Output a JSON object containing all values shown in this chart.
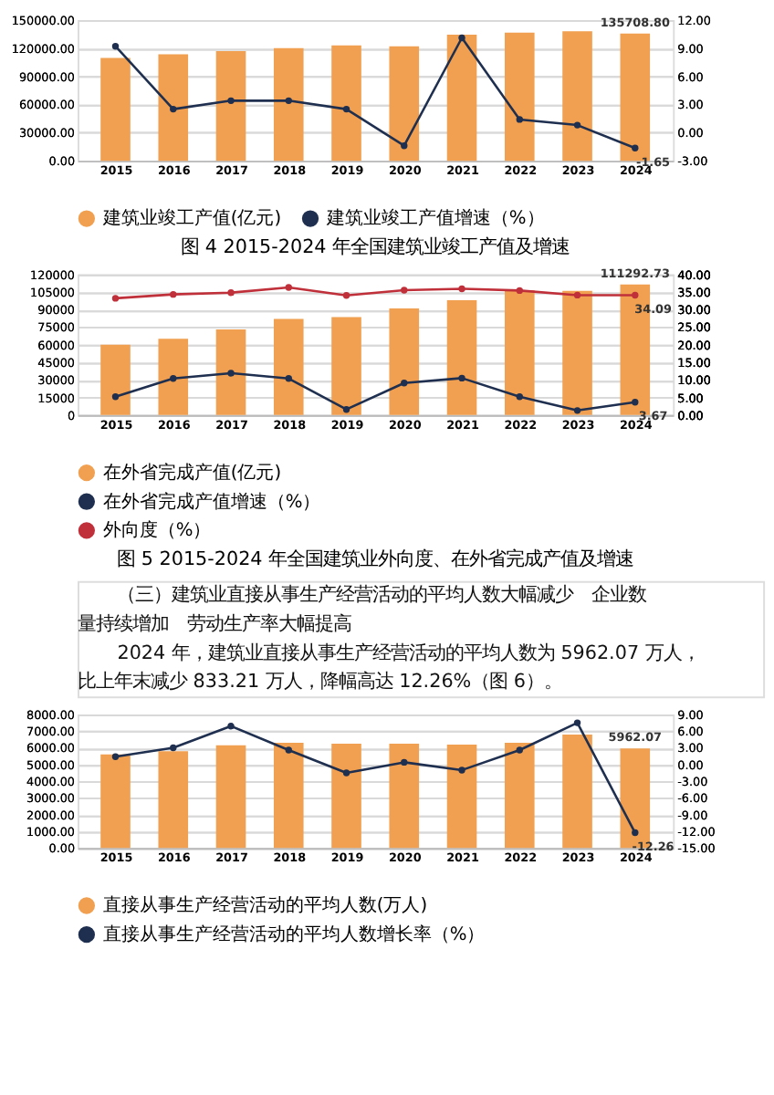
{
  "chart_data": [
    {
      "type": "bar",
      "title": "图 4 2015-2024 年全国建筑业竣工产值及增速",
      "categories": [
        "2015",
        "2016",
        "2017",
        "2018",
        "2019",
        "2020",
        "2021",
        "2022",
        "2023",
        "2024"
      ],
      "series": [
        {
          "name": "建筑业竣工产值(亿元)",
          "color": "#f0a050",
          "values": [
            109500,
            113500,
            117000,
            120000,
            123000,
            122000,
            134500,
            136500,
            138000,
            135708.8
          ],
          "value_labels": [
            null,
            null,
            null,
            null,
            null,
            null,
            null,
            null,
            null,
            "135708.80"
          ]
        },
        {
          "name": "建筑业竣工产值增速（%）",
          "type": "line",
          "axis": "y2",
          "color": "#1f2f4f",
          "values": [
            9.2,
            2.5,
            3.4,
            3.4,
            2.5,
            -1.4,
            10.1,
            1.4,
            0.8,
            -1.65
          ],
          "value_labels": [
            null,
            null,
            null,
            null,
            null,
            null,
            null,
            null,
            null,
            "-1.65"
          ]
        }
      ],
      "ylim": [
        0,
        150000
      ],
      "yticks": [
        {
          "value": 0,
          "label": "0.00"
        },
        {
          "value": 30000,
          "label": "30000.00"
        },
        {
          "value": 60000,
          "label": "60000.00"
        },
        {
          "value": 90000,
          "label": "90000.00"
        },
        {
          "value": 120000,
          "label": "120000.00"
        },
        {
          "value": 150000,
          "label": "150000.00"
        }
      ],
      "y2lim": [
        -3,
        12
      ],
      "y2ticks": [
        {
          "value": -3,
          "label": "-3.00"
        },
        {
          "value": 0,
          "label": "0.00"
        },
        {
          "value": 3,
          "label": "3.00"
        },
        {
          "value": 6,
          "label": "6.00"
        },
        {
          "value": 9,
          "label": "9.00"
        },
        {
          "value": 12,
          "label": "12.00"
        }
      ],
      "grid": "y",
      "legend": "bottom",
      "marker": "circle",
      "line_style": "solid"
    },
    {
      "type": "bar",
      "title": "图 5 2015-2024 年全国建筑业外向度、在外省完成产值及增速",
      "categories": [
        "2015",
        "2016",
        "2017",
        "2018",
        "2019",
        "2020",
        "2021",
        "2022",
        "2023",
        "2024"
      ],
      "series": [
        {
          "name": "在外省完成产值(亿元)",
          "color": "#f0a050",
          "values": [
            60000,
            65000,
            73000,
            82000,
            83500,
            91000,
            98000,
            106500,
            106000,
            111292.73
          ],
          "value_labels": [
            null,
            null,
            null,
            null,
            null,
            null,
            null,
            null,
            null,
            "111292.73"
          ]
        },
        {
          "name": "在外省完成产值增速（%）",
          "type": "line",
          "axis": "y2",
          "color": "#1f2f4f",
          "values": [
            5.2,
            10.4,
            11.9,
            10.4,
            1.6,
            9.1,
            10.5,
            5.2,
            1.3,
            3.67
          ],
          "value_labels": [
            null,
            null,
            null,
            null,
            null,
            null,
            null,
            null,
            null,
            "3.67"
          ]
        },
        {
          "name": "外向度（%）",
          "type": "line",
          "axis": "y2",
          "color": "#c0303a",
          "values": [
            33.2,
            34.3,
            34.8,
            36.3,
            34.0,
            35.5,
            35.9,
            35.4,
            34.1,
            34.09
          ],
          "value_labels": [
            null,
            null,
            null,
            null,
            null,
            null,
            null,
            null,
            null,
            "34.09"
          ]
        }
      ],
      "ylim": [
        0,
        120000
      ],
      "yticks": [
        {
          "value": 0,
          "label": "0"
        },
        {
          "value": 15000,
          "label": "15000"
        },
        {
          "value": 30000,
          "label": "30000"
        },
        {
          "value": 45000,
          "label": "45000"
        },
        {
          "value": 60000,
          "label": "60000"
        },
        {
          "value": 75000,
          "label": "75000"
        },
        {
          "value": 90000,
          "label": "90000"
        },
        {
          "value": 105000,
          "label": "105000"
        },
        {
          "value": 120000,
          "label": "120000"
        }
      ],
      "y2lim": [
        0,
        40
      ],
      "y2ticks": [
        {
          "value": 0,
          "label": "0.00"
        },
        {
          "value": 5,
          "label": "5.00"
        },
        {
          "value": 10,
          "label": "10.00"
        },
        {
          "value": 15,
          "label": "15.00"
        },
        {
          "value": 20,
          "label": "20.00"
        },
        {
          "value": 25,
          "label": "25.00"
        },
        {
          "value": 30,
          "label": "30.00"
        },
        {
          "value": 35,
          "label": "35.00"
        },
        {
          "value": 40,
          "label": "40.00"
        }
      ],
      "grid": "y",
      "legend": "bottom",
      "marker": "circle",
      "line_style": "solid"
    },
    {
      "type": "bar",
      "annotations": [
        "（三）建筑业直接从事生产经营活动的平均人数大幅减少　企业数",
        "量持续增加　劳动生产率大幅提高",
        "2024 年，建筑业直接从事生产经营活动的平均人数为 5962.07 万人，",
        "比上年末减少 833.21 万人，降幅高达 12.26%（图 6）。"
      ],
      "categories": [
        "2015",
        "2016",
        "2017",
        "2018",
        "2019",
        "2020",
        "2021",
        "2022",
        "2023",
        "2024"
      ],
      "series": [
        {
          "name": "直接从事生产经营活动的平均人数(万人)",
          "color": "#f0a050",
          "values": [
            5600,
            5800,
            6150,
            6300,
            6250,
            6250,
            6200,
            6300,
            6795.28,
            5962.07
          ],
          "value_labels": [
            null,
            null,
            null,
            null,
            null,
            null,
            null,
            null,
            null,
            "5962.07"
          ]
        },
        {
          "name": "直接从事生产经营活动的平均人数增长率（%）",
          "type": "line",
          "axis": "y2",
          "color": "#1f2f4f",
          "values": [
            1.4,
            3.0,
            6.9,
            2.6,
            -1.5,
            0.4,
            -1.0,
            2.6,
            7.5,
            -12.26
          ],
          "value_labels": [
            null,
            null,
            null,
            null,
            null,
            null,
            null,
            null,
            null,
            "-12.26"
          ]
        }
      ],
      "ylim": [
        0,
        8000
      ],
      "yticks": [
        {
          "value": 0,
          "label": "0.00"
        },
        {
          "value": 1000,
          "label": "1000.00"
        },
        {
          "value": 2000,
          "label": "2000.00"
        },
        {
          "value": 3000,
          "label": "3000.00"
        },
        {
          "value": 4000,
          "label": "4000.00"
        },
        {
          "value": 5000,
          "label": "5000.00"
        },
        {
          "value": 6000,
          "label": "6000.00"
        },
        {
          "value": 7000,
          "label": "7000.00"
        },
        {
          "value": 8000,
          "label": "8000.00"
        }
      ],
      "y2lim": [
        -15,
        9
      ],
      "y2ticks": [
        {
          "value": -15,
          "label": "-15.00"
        },
        {
          "value": -12,
          "label": "-12.00"
        },
        {
          "value": -9,
          "label": "-9.00"
        },
        {
          "value": -6,
          "label": "-6.00"
        },
        {
          "value": -3,
          "label": "-3.00"
        },
        {
          "value": 0,
          "label": "0.00"
        },
        {
          "value": 3,
          "label": "3.00"
        },
        {
          "value": 6,
          "label": "6.00"
        },
        {
          "value": 9,
          "label": "9.00"
        }
      ],
      "grid": "y",
      "legend": "bottom",
      "marker": "circle",
      "line_style": "solid"
    }
  ]
}
